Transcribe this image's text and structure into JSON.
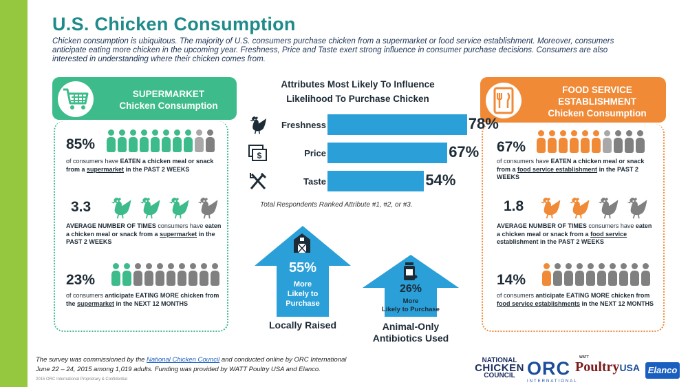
{
  "title": "U.S. Chicken Consumption",
  "intro": "Chicken consumption is ubiquitous.  The majority of U.S. consumers purchase chicken from a supermarket or food service establishment.  Moreover, consumers anticipate eating more chicken in the upcoming year.  Freshness, Price and Taste exert strong influence in consumer purchase decisions.  Consumers are also interested in understanding where their chicken comes from.",
  "colors": {
    "green": "#3dbb8a",
    "orange": "#f08a37",
    "blue": "#2a9fd8",
    "gray": "#808080",
    "lightgray": "#a8a8a8",
    "sidebar": "#95c83f"
  },
  "supermarket": {
    "icon": "shopping-cart-icon",
    "head_line1": "SUPERMARKET",
    "head_line2": "Chicken Consumption",
    "stat1": {
      "value": "85%",
      "pre": "of consumers have ",
      "b1": "EATEN a chicken meal or snack from a ",
      "u1": "supermarket",
      "b2": " in the PAST 2 WEEKS",
      "people_filled": 8.5,
      "people_total": 10
    },
    "stat2": {
      "value": "3.3",
      "b1": "AVERAGE NUMBER OF TIMES",
      "mid": " consumers have ",
      "b2": "eaten a chicken meal or snack from a ",
      "u1": "supermarket",
      "b3": " in the PAST 2 WEEKS",
      "hens_filled": 3,
      "hens_total": 4
    },
    "stat3": {
      "value": "23%",
      "pre": "of consumers ",
      "b1": "anticipate EATING MORE chicken from the ",
      "u1": "supermarket",
      "b2": " in the NEXT 12 MONTHS",
      "people_filled": 2,
      "people_total": 10
    }
  },
  "foodservice": {
    "icon": "menu-utensils-icon",
    "head_line1": "FOOD SERVICE",
    "head_line2": "ESTABLISHMENT",
    "head_line3": "Chicken Consumption",
    "stat1": {
      "value": "67%",
      "pre": "of consumers have ",
      "b1": "EATEN a chicken meal or snack from a ",
      "u1": "food service establishment",
      "b2": " in the PAST 2 WEEKS",
      "people_filled": 6.5,
      "people_total": 10
    },
    "stat2": {
      "value": "1.8",
      "b1": "AVERAGE NUMBER OF TIMES",
      "mid": " consumers have ",
      "b2": "eaten a chicken meal or snack from a ",
      "u1": "food service ",
      "b3": "establishment in the PAST 2 WEEKS",
      "hens_filled": 2,
      "hens_total": 4
    },
    "stat3": {
      "value": "14%",
      "pre": "of consumers ",
      "b1": "anticipate EATING MORE chicken from ",
      "u1": "food service establishments",
      "b2": " in the NEXT 12 MONTHS",
      "people_filled": 1,
      "people_total": 10
    }
  },
  "chart_data": {
    "type": "bar",
    "title_line1": "Attributes Most Likely To Influence",
    "title_line2": "Likelihood To Purchase Chicken",
    "categories": [
      "Freshness",
      "Price",
      "Taste"
    ],
    "values": [
      78,
      67,
      54
    ],
    "value_labels": [
      "78%",
      "67%",
      "54%"
    ],
    "icons": [
      "chicken-icon",
      "money-icon",
      "fork-knife-icon"
    ],
    "xlim": [
      0,
      100
    ],
    "note": "Total Respondents Ranked Attribute #1, #2, or #3."
  },
  "local": {
    "value": "55%",
    "l1": "More",
    "l2": "Likely to",
    "l3": "Purchase",
    "caption": "Locally Raised",
    "icon": "barn-icon"
  },
  "antibiotics": {
    "value": "26%",
    "l1": "More",
    "l2": "Likely to Purchase",
    "caption1": "Animal-Only",
    "caption2": "Antibiotics Used",
    "icon": "medicine-bottle-icon"
  },
  "footnote": {
    "pre": "The survey was commissioned by the ",
    "link": "National Chicken Council",
    "post": " and conducted online by ORC International",
    "line2": "June 22 – 24, 2015 among 1,019 adults.  Funding was provided by WATT Poultry USA and Elanco."
  },
  "copyright": "2015 ORC International  Proprietary & Confidential",
  "logos": {
    "ncc_1": "NATIONAL",
    "ncc_2": "CHICKEN",
    "ncc_3": "COUNCIL",
    "orc": "ORC",
    "orc_sub": "INTERNATIONAL",
    "watt_small": "WATT",
    "watt": "Poultry",
    "watt_usa": "USA",
    "elanco": "Elanco"
  }
}
